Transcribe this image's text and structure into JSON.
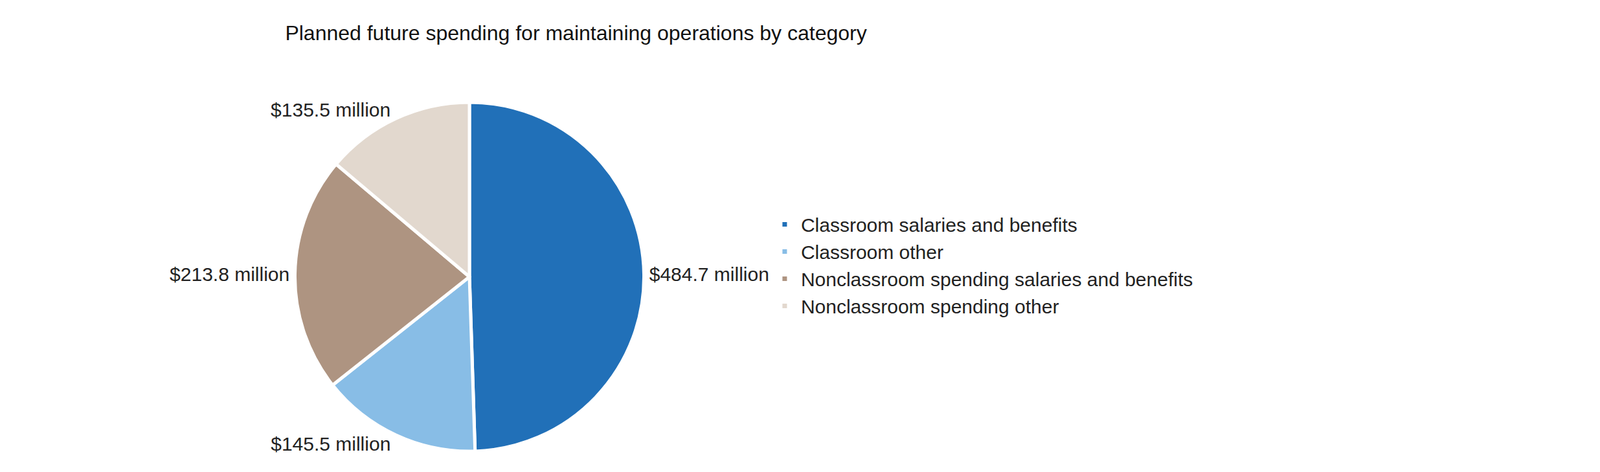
{
  "chart_data": {
    "type": "pie",
    "title": "Planned future spending for maintaining operations by category",
    "categories": [
      "Classroom salaries and benefits",
      "Classroom other",
      "Nonclassroom spending salaries and benefits",
      "Nonclassroom spending other"
    ],
    "values": [
      484.7,
      145.5,
      213.8,
      135.5
    ],
    "value_labels": [
      "$484.7 million",
      "$145.5 million",
      "$213.8 million",
      "$135.5 million"
    ],
    "colors": [
      "#2170b8",
      "#88bde6",
      "#ae9481",
      "#e2d8ce"
    ],
    "data_labels": true,
    "legend": "right"
  }
}
